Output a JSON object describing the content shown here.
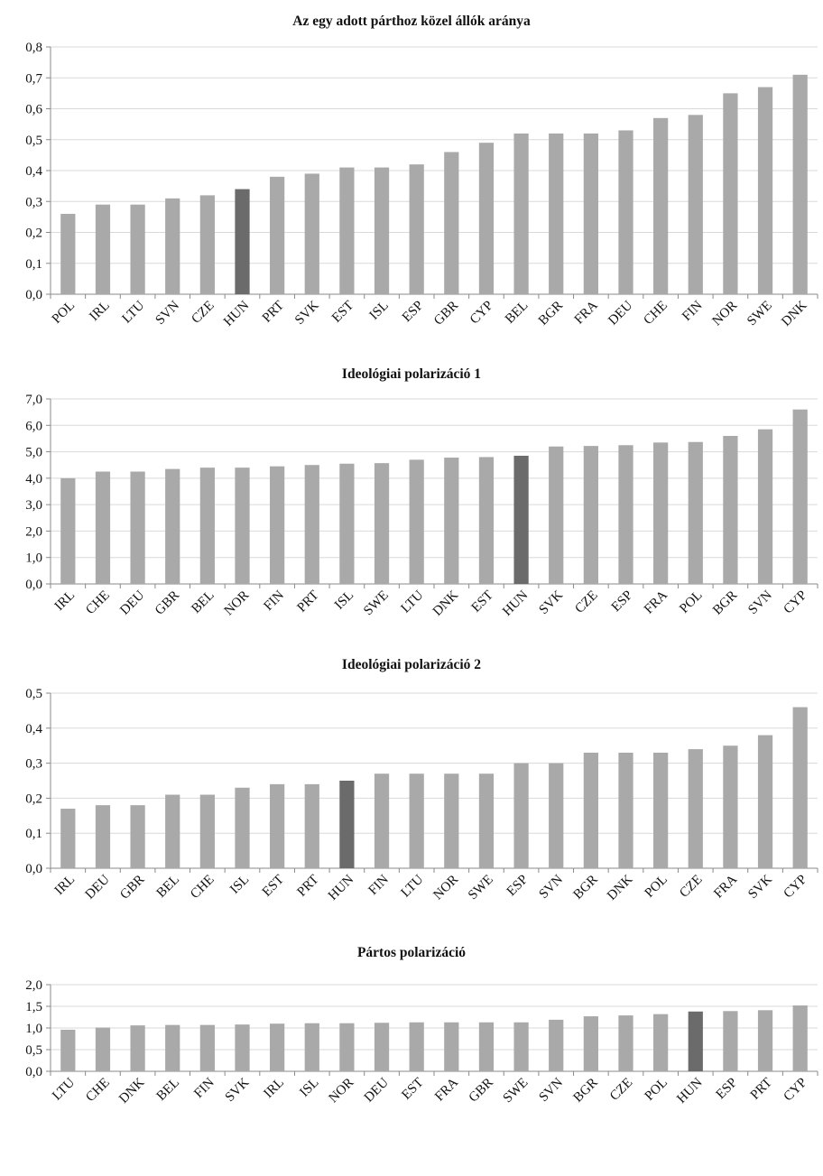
{
  "colors": {
    "bar": "#a9a9a9",
    "highlight": "#6b6b6b",
    "axis": "#8a8a8a",
    "grid": "#d9d9d9"
  },
  "chart_data": [
    {
      "type": "bar",
      "title": "Az egy adott párthoz közel állók aránya",
      "categories": [
        "POL",
        "IRL",
        "LTU",
        "SVN",
        "CZE",
        "HUN",
        "PRT",
        "SVK",
        "EST",
        "ISL",
        "ESP",
        "GBR",
        "CYP",
        "BEL",
        "BGR",
        "FRA",
        "DEU",
        "CHE",
        "FIN",
        "NOR",
        "SWE",
        "DNK"
      ],
      "values": [
        0.26,
        0.29,
        0.29,
        0.31,
        0.32,
        0.34,
        0.38,
        0.39,
        0.41,
        0.41,
        0.42,
        0.46,
        0.49,
        0.52,
        0.52,
        0.52,
        0.53,
        0.57,
        0.58,
        0.65,
        0.67,
        0.71
      ],
      "highlight": "HUN",
      "ylim": [
        0,
        0.8
      ],
      "yticks": [
        "0,0",
        "0,1",
        "0,2",
        "0,3",
        "0,4",
        "0,5",
        "0,6",
        "0,7",
        "0,8"
      ],
      "xlabel": "",
      "ylabel": "",
      "grid": true
    },
    {
      "type": "bar",
      "title": "Ideológiai polarizáció 1",
      "categories": [
        "IRL",
        "CHE",
        "DEU",
        "GBR",
        "BEL",
        "NOR",
        "FIN",
        "PRT",
        "ISL",
        "SWE",
        "LTU",
        "DNK",
        "EST",
        "HUN",
        "SVK",
        "CZE",
        "ESP",
        "FRA",
        "POL",
        "BGR",
        "SVN",
        "CYP"
      ],
      "values": [
        4.0,
        4.25,
        4.25,
        4.35,
        4.4,
        4.4,
        4.45,
        4.5,
        4.55,
        4.57,
        4.7,
        4.78,
        4.8,
        4.85,
        5.2,
        5.22,
        5.25,
        5.35,
        5.37,
        5.6,
        5.85,
        6.6
      ],
      "highlight": "HUN",
      "ylim": [
        0,
        7.0
      ],
      "yticks": [
        "0,0",
        "1,0",
        "2,0",
        "3,0",
        "4,0",
        "5,0",
        "6,0",
        "7,0"
      ],
      "xlabel": "",
      "ylabel": "",
      "grid": true
    },
    {
      "type": "bar",
      "title": "Ideológiai polarizáció 2",
      "categories": [
        "IRL",
        "DEU",
        "GBR",
        "BEL",
        "CHE",
        "ISL",
        "EST",
        "PRT",
        "HUN",
        "FIN",
        "LTU",
        "NOR",
        "SWE",
        "ESP",
        "SVN",
        "BGR",
        "DNK",
        "POL",
        "CZE",
        "FRA",
        "SVK",
        "CYP"
      ],
      "values": [
        0.17,
        0.18,
        0.18,
        0.21,
        0.21,
        0.23,
        0.24,
        0.24,
        0.25,
        0.27,
        0.27,
        0.27,
        0.27,
        0.3,
        0.3,
        0.33,
        0.33,
        0.33,
        0.34,
        0.35,
        0.38,
        0.46
      ],
      "highlight": "HUN",
      "ylim": [
        0,
        0.5
      ],
      "yticks": [
        "0,0",
        "0,1",
        "0,2",
        "0,3",
        "0,4",
        "0,5"
      ],
      "xlabel": "",
      "ylabel": "",
      "grid": true
    },
    {
      "type": "bar",
      "title": "Pártos polarizáció",
      "categories": [
        "LTU",
        "CHE",
        "DNK",
        "BEL",
        "FIN",
        "SVK",
        "IRL",
        "ISL",
        "NOR",
        "DEU",
        "EST",
        "FRA",
        "GBR",
        "SWE",
        "SVN",
        "BGR",
        "CZE",
        "POL",
        "HUN",
        "ESP",
        "PRT",
        "CYP"
      ],
      "values": [
        0.96,
        1.01,
        1.06,
        1.07,
        1.07,
        1.08,
        1.1,
        1.11,
        1.11,
        1.12,
        1.13,
        1.13,
        1.13,
        1.13,
        1.19,
        1.27,
        1.29,
        1.32,
        1.38,
        1.39,
        1.41,
        1.52
      ],
      "highlight": "HUN",
      "ylim": [
        0,
        2.0
      ],
      "yticks": [
        "0,0",
        "0,5",
        "1,0",
        "1,5",
        "2,0"
      ],
      "xlabel": "",
      "ylabel": "",
      "grid": true
    }
  ]
}
